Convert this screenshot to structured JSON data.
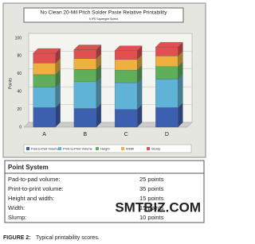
{
  "chart_data": {
    "type": "bar3d_stacked",
    "title": "No Clean 20-Mil Pitch Solder Paste Relative Printability",
    "subtitle": "5 IPS Squeegee Speed",
    "y_label": "Points",
    "categories": [
      "A",
      "B",
      "C",
      "D"
    ],
    "series": [
      {
        "name": "Pad-to-Pad Volume",
        "color": "#3d5fb0",
        "values": [
          22,
          21,
          20,
          22
        ]
      },
      {
        "name": "Print-to-Print Volume",
        "color": "#5fb3d6",
        "values": [
          23,
          30,
          30,
          32
        ]
      },
      {
        "name": "Height",
        "color": "#5fae5a",
        "values": [
          14,
          14,
          14,
          14
        ]
      },
      {
        "name": "Width",
        "color": "#f0b040",
        "values": [
          13,
          12,
          12,
          12
        ]
      },
      {
        "name": "Slump",
        "color": "#e05050",
        "values": [
          11,
          10,
          10,
          10
        ]
      }
    ],
    "ylim": [
      0,
      100
    ],
    "yticks": [
      0,
      20,
      40,
      60,
      80,
      100
    ],
    "grid": true
  },
  "table": {
    "title": "Point System",
    "rows": [
      [
        "Pad-to-pad volume:",
        "25 points"
      ],
      [
        "Print-to-print volume:",
        "35 points"
      ],
      [
        "Height and width:",
        "15 points"
      ],
      [
        "Width:",
        "15 points"
      ],
      [
        "Slump:",
        "10 points"
      ]
    ]
  },
  "watermark": "SMTBIZ.COM",
  "caption": {
    "label": "FIGURE 2:",
    "text": "Typical printability scores."
  }
}
